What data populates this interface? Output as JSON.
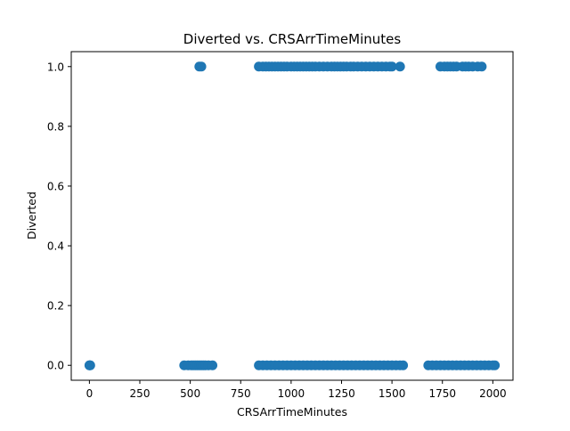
{
  "chart_data": {
    "type": "scatter",
    "title": "Diverted vs. CRSArrTimeMinutes",
    "xlabel": "CRSArrTimeMinutes",
    "ylabel": "Diverted",
    "xlim": [
      -90,
      2100
    ],
    "ylim": [
      -0.05,
      1.05
    ],
    "grid": false,
    "legend": "none",
    "x_ticks": [
      0,
      250,
      500,
      750,
      1000,
      1250,
      1500,
      1750,
      2000
    ],
    "x_tick_labels": [
      "0",
      "250",
      "500",
      "750",
      "1000",
      "1250",
      "1500",
      "1750",
      "2000"
    ],
    "y_ticks": [
      0.0,
      0.2,
      0.4,
      0.6,
      0.8,
      1.0
    ],
    "y_tick_labels": [
      "0.0",
      "0.2",
      "0.4",
      "0.6",
      "0.8",
      "1.0"
    ],
    "series": [
      {
        "color": "#1f77b4",
        "points": [
          [
            0,
            0
          ],
          [
            2,
            0
          ],
          [
            4,
            0
          ],
          [
            470,
            0
          ],
          [
            490,
            0
          ],
          [
            505,
            0
          ],
          [
            515,
            0
          ],
          [
            525,
            0
          ],
          [
            535,
            0
          ],
          [
            545,
            0
          ],
          [
            555,
            0
          ],
          [
            565,
            0
          ],
          [
            575,
            0
          ],
          [
            590,
            0
          ],
          [
            610,
            0
          ],
          [
            840,
            0
          ],
          [
            860,
            0
          ],
          [
            880,
            0
          ],
          [
            900,
            0
          ],
          [
            920,
            0
          ],
          [
            940,
            0
          ],
          [
            960,
            0
          ],
          [
            980,
            0
          ],
          [
            1000,
            0
          ],
          [
            1020,
            0
          ],
          [
            1040,
            0
          ],
          [
            1060,
            0
          ],
          [
            1080,
            0
          ],
          [
            1100,
            0
          ],
          [
            1120,
            0
          ],
          [
            1140,
            0
          ],
          [
            1160,
            0
          ],
          [
            1180,
            0
          ],
          [
            1200,
            0
          ],
          [
            1220,
            0
          ],
          [
            1240,
            0
          ],
          [
            1260,
            0
          ],
          [
            1280,
            0
          ],
          [
            1300,
            0
          ],
          [
            1320,
            0
          ],
          [
            1340,
            0
          ],
          [
            1360,
            0
          ],
          [
            1380,
            0
          ],
          [
            1400,
            0
          ],
          [
            1420,
            0
          ],
          [
            1440,
            0
          ],
          [
            1460,
            0
          ],
          [
            1480,
            0
          ],
          [
            1500,
            0
          ],
          [
            1520,
            0
          ],
          [
            1540,
            0
          ],
          [
            1555,
            0
          ],
          [
            1680,
            0
          ],
          [
            1700,
            0
          ],
          [
            1720,
            0
          ],
          [
            1740,
            0
          ],
          [
            1760,
            0
          ],
          [
            1780,
            0
          ],
          [
            1800,
            0
          ],
          [
            1820,
            0
          ],
          [
            1840,
            0
          ],
          [
            1860,
            0
          ],
          [
            1880,
            0
          ],
          [
            1900,
            0
          ],
          [
            1920,
            0
          ],
          [
            1940,
            0
          ],
          [
            1960,
            0
          ],
          [
            1980,
            0
          ],
          [
            2000,
            0
          ],
          [
            2010,
            0
          ],
          [
            545,
            1
          ],
          [
            555,
            1
          ],
          [
            840,
            1
          ],
          [
            860,
            1
          ],
          [
            875,
            1
          ],
          [
            890,
            1
          ],
          [
            905,
            1
          ],
          [
            920,
            1
          ],
          [
            935,
            1
          ],
          [
            950,
            1
          ],
          [
            965,
            1
          ],
          [
            980,
            1
          ],
          [
            1000,
            1
          ],
          [
            1015,
            1
          ],
          [
            1030,
            1
          ],
          [
            1045,
            1
          ],
          [
            1060,
            1
          ],
          [
            1075,
            1
          ],
          [
            1090,
            1
          ],
          [
            1105,
            1
          ],
          [
            1120,
            1
          ],
          [
            1140,
            1
          ],
          [
            1160,
            1
          ],
          [
            1180,
            1
          ],
          [
            1200,
            1
          ],
          [
            1215,
            1
          ],
          [
            1230,
            1
          ],
          [
            1245,
            1
          ],
          [
            1260,
            1
          ],
          [
            1275,
            1
          ],
          [
            1295,
            1
          ],
          [
            1310,
            1
          ],
          [
            1330,
            1
          ],
          [
            1350,
            1
          ],
          [
            1370,
            1
          ],
          [
            1390,
            1
          ],
          [
            1410,
            1
          ],
          [
            1430,
            1
          ],
          [
            1450,
            1
          ],
          [
            1470,
            1
          ],
          [
            1490,
            1
          ],
          [
            1500,
            1
          ],
          [
            1540,
            1
          ],
          [
            1740,
            1
          ],
          [
            1760,
            1
          ],
          [
            1775,
            1
          ],
          [
            1790,
            1
          ],
          [
            1805,
            1
          ],
          [
            1820,
            1
          ],
          [
            1850,
            1
          ],
          [
            1865,
            1
          ],
          [
            1880,
            1
          ],
          [
            1900,
            1
          ],
          [
            1925,
            1
          ],
          [
            1945,
            1
          ]
        ]
      }
    ]
  }
}
